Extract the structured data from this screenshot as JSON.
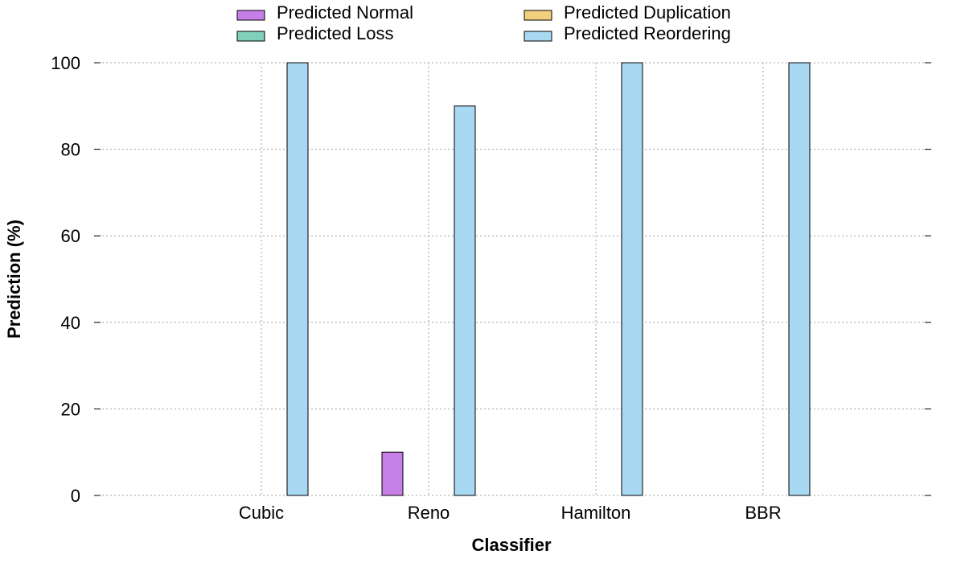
{
  "chart_data": {
    "type": "bar",
    "title": "",
    "xlabel": "Classifier",
    "ylabel": "Prediction (%)",
    "categories": [
      "Cubic",
      "Reno",
      "Hamilton",
      "BBR"
    ],
    "ylim": [
      0,
      100
    ],
    "yticks": [
      0,
      20,
      40,
      60,
      80,
      100
    ],
    "grid": true,
    "legend_position": "top",
    "series": [
      {
        "name": "Predicted Normal",
        "color": "#c77fe8",
        "values": [
          0,
          10,
          0,
          0
        ]
      },
      {
        "name": "Predicted Loss",
        "color": "#7fd1b9",
        "values": [
          0,
          0,
          0,
          0
        ]
      },
      {
        "name": "Predicted Duplication",
        "color": "#f2cf7c",
        "values": [
          0,
          0,
          0,
          0
        ]
      },
      {
        "name": "Predicted Reordering",
        "color": "#a8d8f2",
        "values": [
          100,
          90,
          100,
          100
        ]
      }
    ]
  }
}
